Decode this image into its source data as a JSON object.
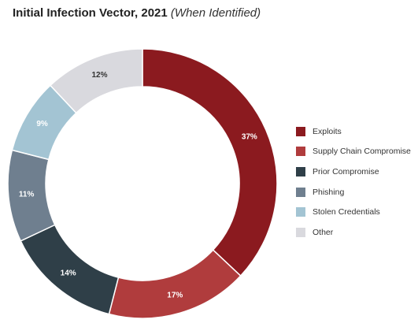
{
  "title": "Initial Infection Vector, 2021",
  "subtitle": "(When Identified)",
  "chart_data": {
    "type": "pie",
    "style": "donut",
    "legend_position": "right",
    "slices": [
      {
        "label": "Exploits",
        "value": 37,
        "display": "37%",
        "color": "#8b1a1f"
      },
      {
        "label": "Supply Chain Compromise",
        "value": 17,
        "display": "17%",
        "color": "#b03c3d"
      },
      {
        "label": "Prior Compromise",
        "value": 14,
        "display": "14%",
        "color": "#2f3f48"
      },
      {
        "label": "Phishing",
        "value": 11,
        "display": "11%",
        "color": "#6f7f8f"
      },
      {
        "label": "Stolen Credentials",
        "value": 9,
        "display": "9%",
        "color": "#a3c4d3"
      },
      {
        "label": "Other",
        "value": 12,
        "display": "12%",
        "color": "#d9d9de"
      }
    ]
  }
}
